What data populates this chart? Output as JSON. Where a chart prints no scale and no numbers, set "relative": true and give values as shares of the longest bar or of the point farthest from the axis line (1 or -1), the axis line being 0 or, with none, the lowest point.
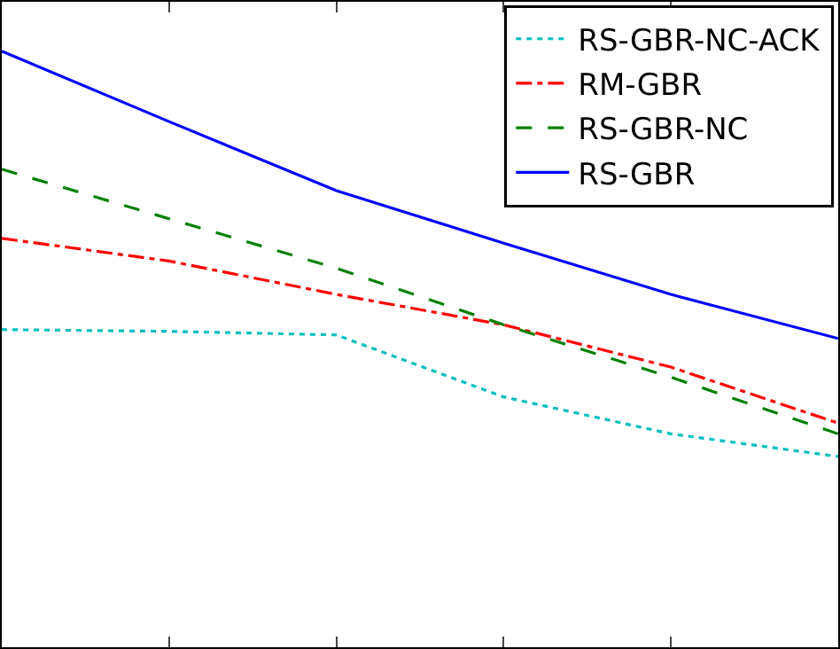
{
  "chart_data": {
    "type": "line",
    "relative": true,
    "categories": [
      null,
      null,
      null,
      null,
      null,
      null
    ],
    "legend": "top right",
    "series": [
      {
        "name": "RS-GBR-NC-ACK",
        "color": "#00bfbf",
        "line_style": "dotted",
        "values": [
          0.533,
          0.53,
          0.524,
          0.42,
          0.358,
          0.32
        ]
      },
      {
        "name": "RM-GBR",
        "color": "#ff0000",
        "line_style": "dashdot",
        "values": [
          0.686,
          0.648,
          0.592,
          0.541,
          0.47,
          0.376
        ]
      },
      {
        "name": "RS-GBR-NC",
        "color": "#008000",
        "line_style": "dashed",
        "values": [
          0.802,
          0.719,
          0.636,
          0.541,
          0.453,
          0.358
        ]
      },
      {
        "name": "RS-GBR",
        "color": "#0000ff",
        "line_style": "solid",
        "values": [
          1,
          0.882,
          0.766,
          0.678,
          0.592,
          0.518
        ]
      }
    ]
  }
}
